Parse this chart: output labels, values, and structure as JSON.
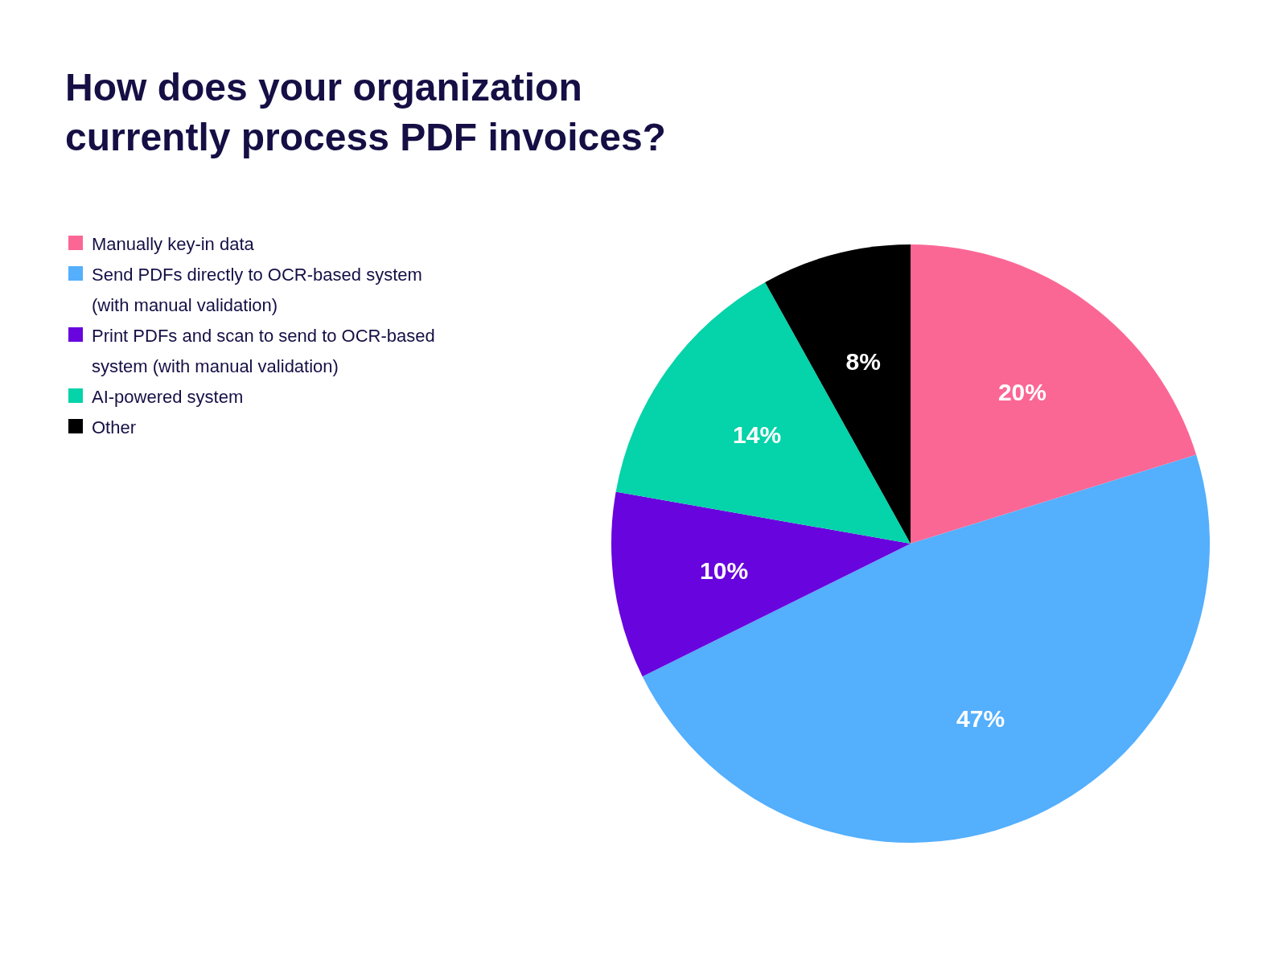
{
  "chart_data": {
    "type": "pie",
    "title": "How does your organization currently process PDF invoices?",
    "categories": [
      "Manually key-in data",
      "Send PDFs directly to OCR-based system (with manual validation)",
      "Print PDFs and scan to send to OCR-based system (with manual validation)",
      "AI-powered system",
      "Other"
    ],
    "values": [
      20,
      47,
      10,
      14,
      8
    ],
    "colors": [
      "#fb6795",
      "#54affd",
      "#6804de",
      "#05d3a9",
      "#000000"
    ],
    "value_labels": [
      "20%",
      "47%",
      "10%",
      "14%",
      "8%"
    ],
    "legend": "top left"
  }
}
